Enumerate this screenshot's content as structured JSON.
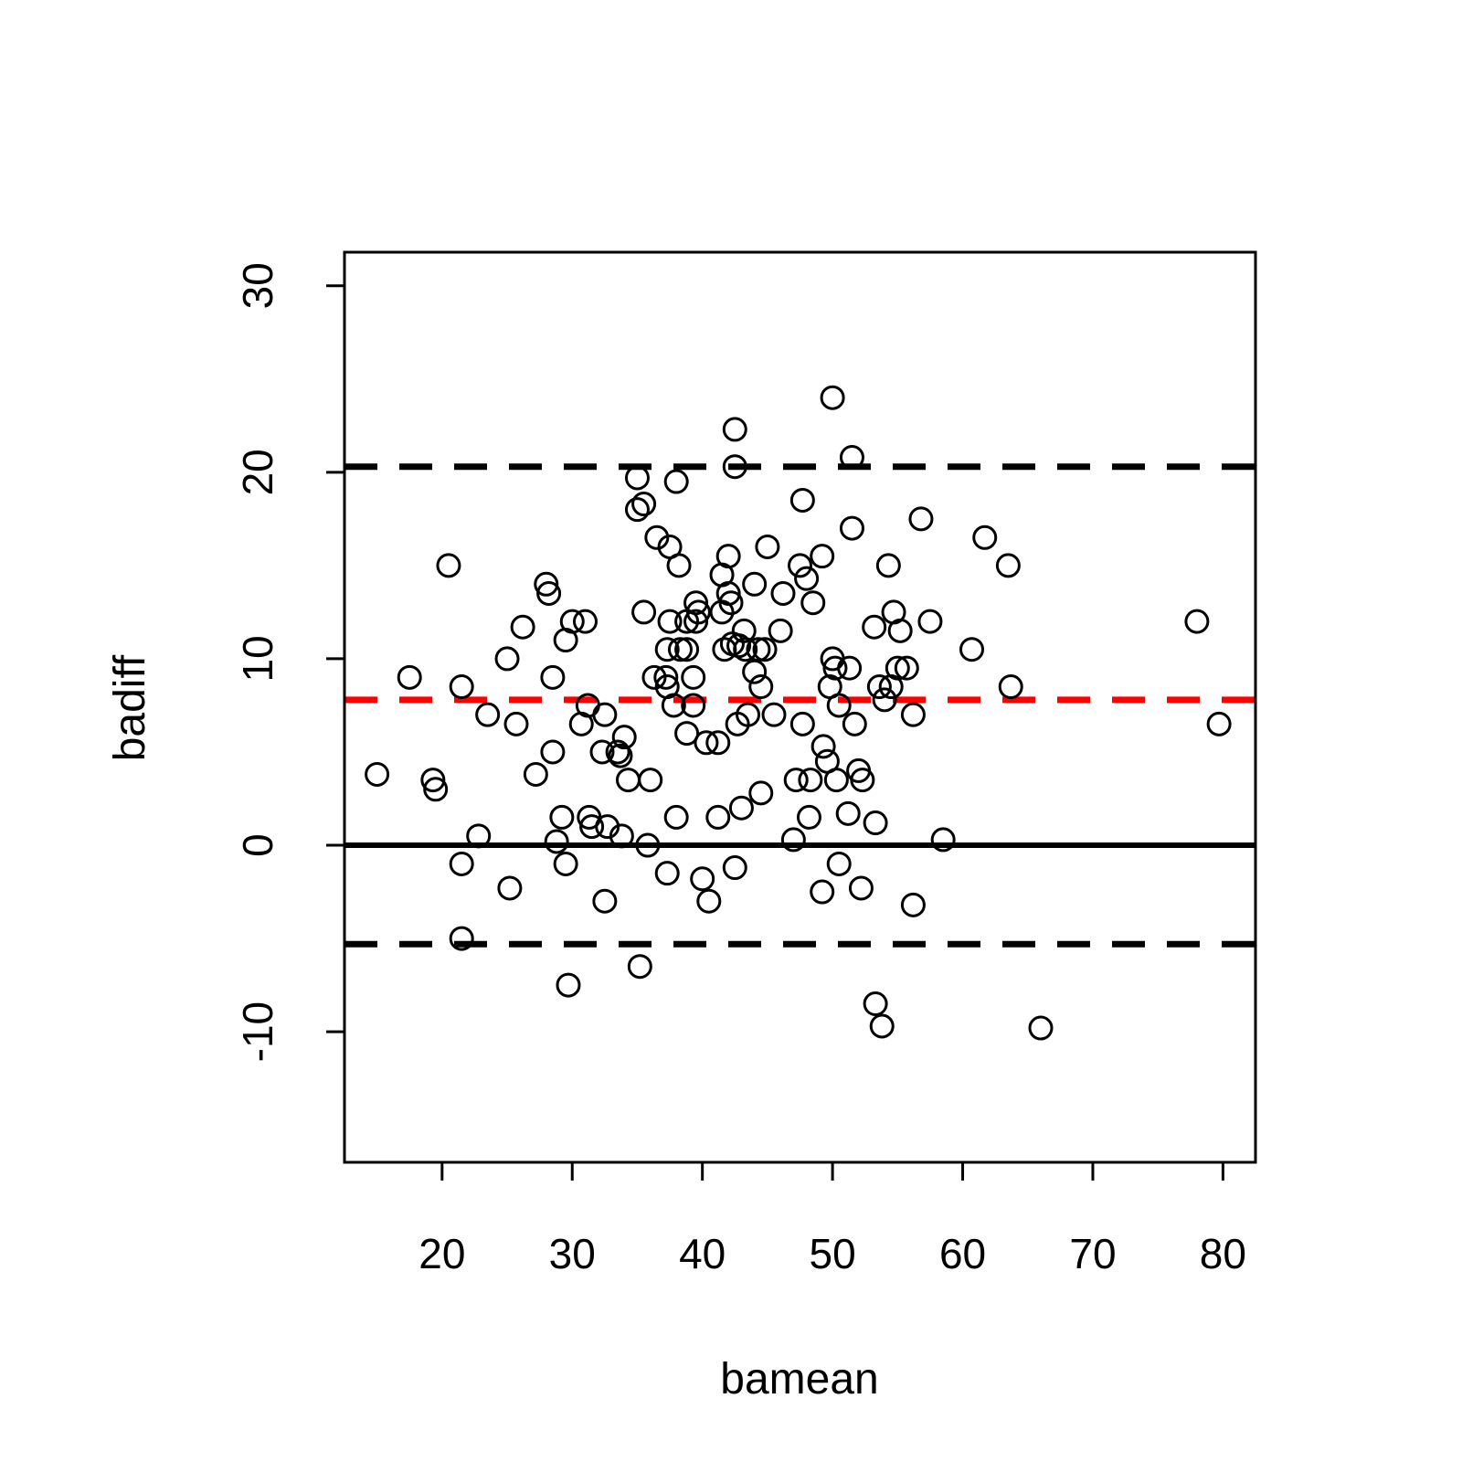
{
  "chart_data": {
    "type": "scatter",
    "title": "",
    "xlabel": "bamean",
    "ylabel": "badiff",
    "xlim": [
      12.5,
      82.5
    ],
    "ylim": [
      -17,
      31.8
    ],
    "xticks": [
      20,
      30,
      40,
      50,
      60,
      70,
      80
    ],
    "yticks": [
      -10,
      0,
      10,
      20,
      30
    ],
    "grid": false,
    "legend": "none",
    "hlines": [
      {
        "y": 0,
        "style": "solid",
        "color": "#000000"
      },
      {
        "y": 7.8,
        "style": "dashed",
        "color": "#ff0000"
      },
      {
        "y": 20.3,
        "style": "dashed",
        "color": "#000000"
      },
      {
        "y": -5.3,
        "style": "dashed",
        "color": "#000000"
      }
    ],
    "point_color": "#000000",
    "points": [
      [
        15.0,
        3.8
      ],
      [
        17.5,
        9.0
      ],
      [
        19.3,
        3.5
      ],
      [
        19.5,
        3.0
      ],
      [
        20.5,
        15.0
      ],
      [
        21.5,
        8.5
      ],
      [
        21.5,
        -1.0
      ],
      [
        21.5,
        -5.0
      ],
      [
        22.8,
        0.5
      ],
      [
        23.5,
        7.0
      ],
      [
        25.0,
        10.0
      ],
      [
        25.2,
        -2.3
      ],
      [
        25.7,
        6.5
      ],
      [
        26.2,
        11.7
      ],
      [
        27.2,
        3.8
      ],
      [
        28.0,
        14.0
      ],
      [
        28.2,
        13.5
      ],
      [
        28.5,
        9.0
      ],
      [
        28.5,
        5.0
      ],
      [
        28.8,
        0.2
      ],
      [
        29.2,
        1.5
      ],
      [
        29.5,
        11.0
      ],
      [
        29.5,
        -1.0
      ],
      [
        29.7,
        -7.5
      ],
      [
        30.0,
        12.0
      ],
      [
        30.7,
        6.5
      ],
      [
        31.0,
        12.0
      ],
      [
        31.2,
        7.5
      ],
      [
        31.3,
        1.5
      ],
      [
        31.5,
        1.0
      ],
      [
        32.3,
        5.0
      ],
      [
        32.5,
        -3.0
      ],
      [
        32.5,
        7.0
      ],
      [
        32.7,
        1.0
      ],
      [
        33.5,
        5.0
      ],
      [
        33.7,
        4.8
      ],
      [
        33.8,
        0.5
      ],
      [
        34.0,
        5.8
      ],
      [
        34.3,
        3.5
      ],
      [
        35.0,
        19.7
      ],
      [
        35.0,
        18.0
      ],
      [
        35.2,
        -6.5
      ],
      [
        35.5,
        18.3
      ],
      [
        35.5,
        12.5
      ],
      [
        35.8,
        0.0
      ],
      [
        36.0,
        3.5
      ],
      [
        36.3,
        9.0
      ],
      [
        36.5,
        16.5
      ],
      [
        37.2,
        9.0
      ],
      [
        37.3,
        8.5
      ],
      [
        37.3,
        10.5
      ],
      [
        37.3,
        -1.5
      ],
      [
        37.5,
        16.0
      ],
      [
        37.5,
        12.0
      ],
      [
        37.8,
        7.5
      ],
      [
        38.0,
        19.5
      ],
      [
        38.0,
        1.5
      ],
      [
        38.2,
        15.0
      ],
      [
        38.3,
        10.5
      ],
      [
        38.8,
        10.5
      ],
      [
        38.8,
        12.0
      ],
      [
        38.8,
        6.0
      ],
      [
        39.3,
        7.5
      ],
      [
        39.3,
        9.0
      ],
      [
        39.5,
        12.0
      ],
      [
        39.5,
        13.0
      ],
      [
        39.7,
        12.5
      ],
      [
        40.0,
        -1.8
      ],
      [
        40.3,
        5.5
      ],
      [
        40.5,
        -3.0
      ],
      [
        41.2,
        1.5
      ],
      [
        41.2,
        5.5
      ],
      [
        41.5,
        14.5
      ],
      [
        41.5,
        12.5
      ],
      [
        41.7,
        10.5
      ],
      [
        42.0,
        15.5
      ],
      [
        42.0,
        13.5
      ],
      [
        42.2,
        13.0
      ],
      [
        42.3,
        10.8
      ],
      [
        42.5,
        22.3
      ],
      [
        42.5,
        20.3
      ],
      [
        42.5,
        -1.2
      ],
      [
        42.7,
        6.5
      ],
      [
        42.8,
        10.7
      ],
      [
        43.0,
        2.0
      ],
      [
        43.2,
        11.5
      ],
      [
        43.3,
        10.5
      ],
      [
        43.5,
        7.0
      ],
      [
        44.0,
        14.0
      ],
      [
        44.0,
        9.3
      ],
      [
        44.3,
        10.5
      ],
      [
        44.5,
        8.5
      ],
      [
        44.5,
        2.8
      ],
      [
        44.8,
        10.5
      ],
      [
        45.0,
        16.0
      ],
      [
        45.5,
        7.0
      ],
      [
        46.0,
        11.5
      ],
      [
        46.2,
        13.5
      ],
      [
        47.0,
        0.3
      ],
      [
        47.2,
        3.5
      ],
      [
        47.5,
        15.0
      ],
      [
        47.7,
        18.5
      ],
      [
        47.7,
        6.5
      ],
      [
        48.0,
        14.3
      ],
      [
        48.2,
        1.5
      ],
      [
        48.3,
        3.5
      ],
      [
        48.5,
        13.0
      ],
      [
        49.2,
        15.5
      ],
      [
        49.2,
        -2.5
      ],
      [
        49.3,
        5.3
      ],
      [
        49.6,
        4.5
      ],
      [
        49.8,
        8.5
      ],
      [
        50.0,
        24.0
      ],
      [
        50.0,
        10.0
      ],
      [
        50.2,
        9.5
      ],
      [
        50.3,
        3.5
      ],
      [
        50.5,
        7.5
      ],
      [
        50.5,
        -1.0
      ],
      [
        51.2,
        1.7
      ],
      [
        51.3,
        9.5
      ],
      [
        51.5,
        20.8
      ],
      [
        51.5,
        17.0
      ],
      [
        51.7,
        6.5
      ],
      [
        52.0,
        4.0
      ],
      [
        52.2,
        -2.3
      ],
      [
        52.3,
        3.5
      ],
      [
        53.2,
        11.7
      ],
      [
        53.3,
        1.2
      ],
      [
        53.3,
        -8.5
      ],
      [
        53.6,
        8.5
      ],
      [
        53.8,
        -9.7
      ],
      [
        54.0,
        7.8
      ],
      [
        54.3,
        15.0
      ],
      [
        54.5,
        8.5
      ],
      [
        54.7,
        12.5
      ],
      [
        55.0,
        9.5
      ],
      [
        55.2,
        11.5
      ],
      [
        55.7,
        9.5
      ],
      [
        56.2,
        7.0
      ],
      [
        56.2,
        -3.2
      ],
      [
        56.8,
        17.5
      ],
      [
        57.5,
        12.0
      ],
      [
        58.5,
        0.3
      ],
      [
        60.7,
        10.5
      ],
      [
        61.7,
        16.5
      ],
      [
        63.5,
        15.0
      ],
      [
        63.7,
        8.5
      ],
      [
        66.0,
        -9.8
      ],
      [
        78.0,
        12.0
      ],
      [
        79.7,
        6.5
      ]
    ]
  }
}
